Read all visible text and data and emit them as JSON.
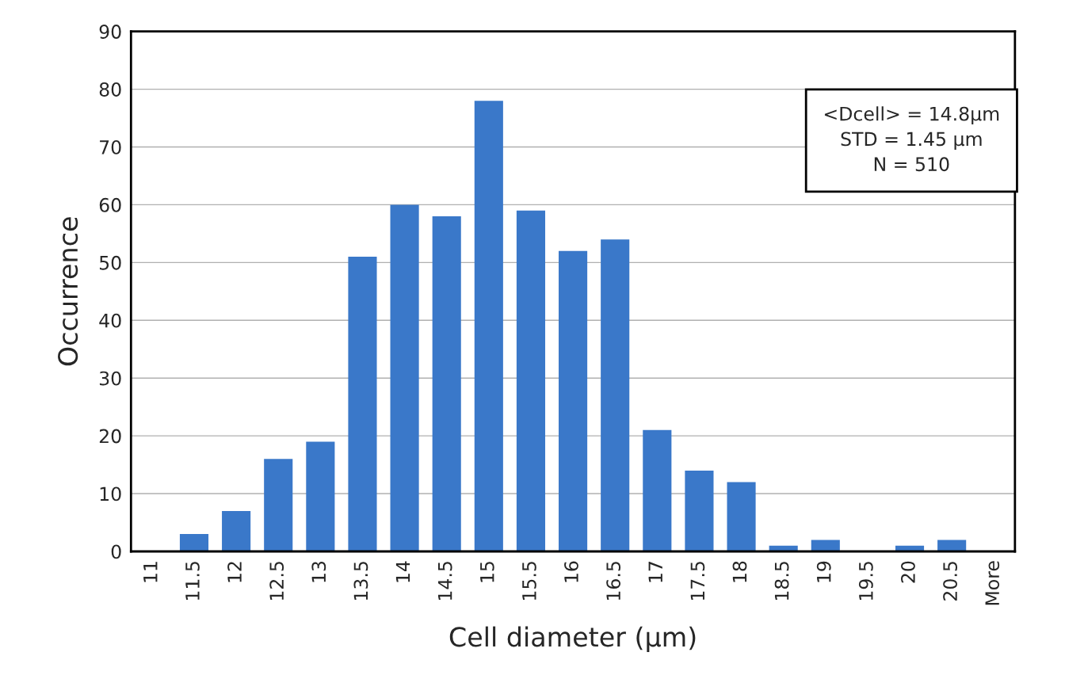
{
  "chart_data": {
    "type": "bar",
    "xlabel": "Cell diameter (µm)",
    "ylabel": "Occurrence",
    "categories": [
      "11",
      "11.5",
      "12",
      "12.5",
      "13",
      "13.5",
      "14",
      "14.5",
      "15",
      "15.5",
      "16",
      "16.5",
      "17",
      "17.5",
      "18",
      "18.5",
      "19",
      "19.5",
      "20",
      "20.5",
      "More"
    ],
    "values": [
      0,
      3,
      7,
      16,
      19,
      51,
      60,
      58,
      78,
      59,
      52,
      54,
      21,
      14,
      12,
      1,
      2,
      0,
      1,
      2,
      0
    ],
    "color": "#3a78c9",
    "ylim": [
      0,
      90
    ],
    "yticks": [
      0,
      10,
      20,
      30,
      40,
      50,
      60,
      70,
      80,
      90
    ],
    "grid": "y",
    "annotations": [
      "<Dcell> = 14.8µm",
      "STD = 1.45 µm",
      "N = 510"
    ]
  }
}
